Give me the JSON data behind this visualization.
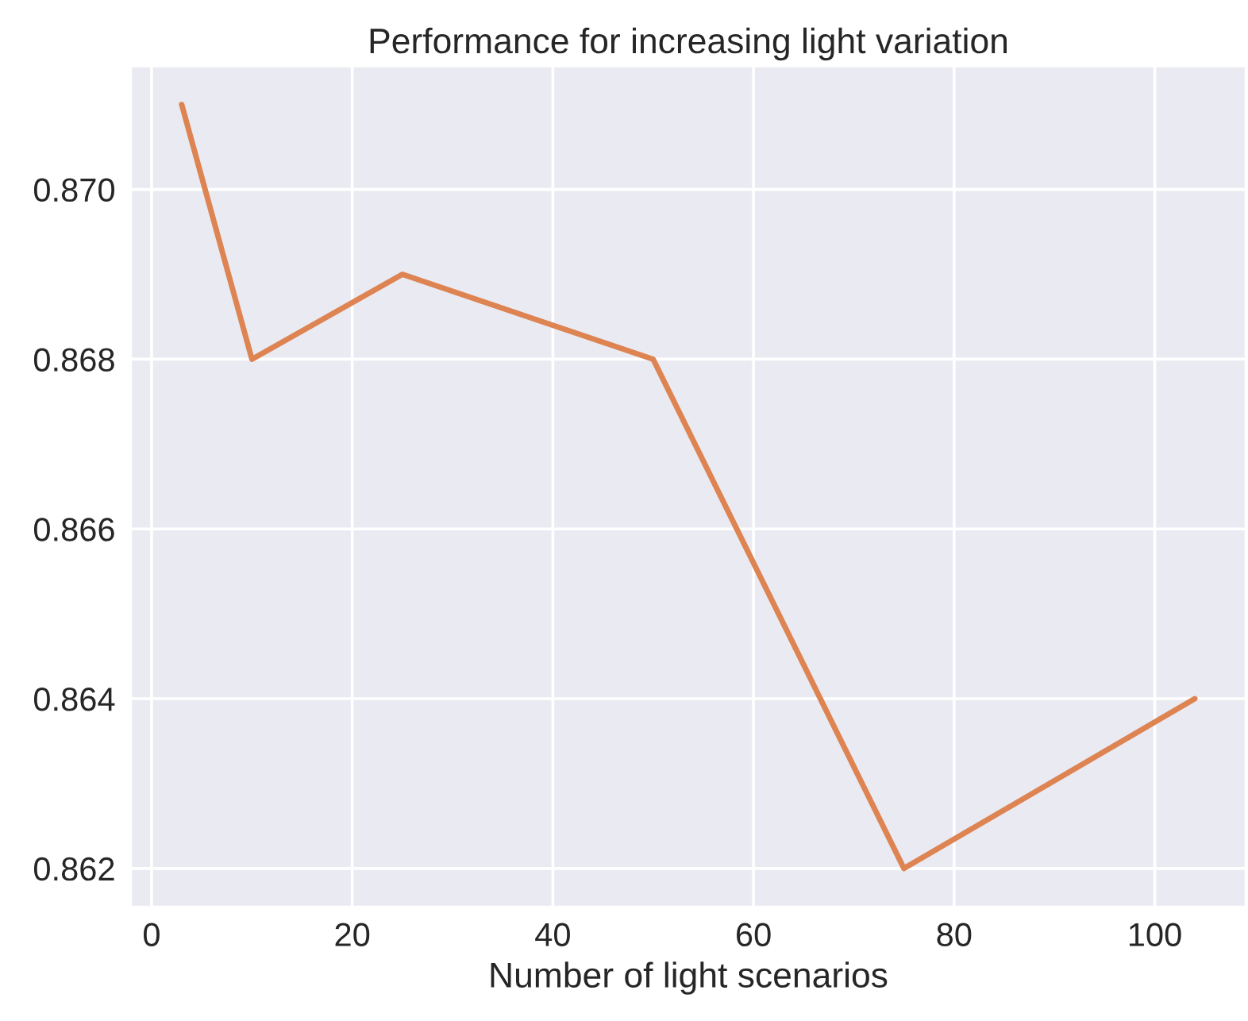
{
  "chart_data": {
    "type": "line",
    "title": "Performance for increasing light variation",
    "xlabel": "Number of light scenarios",
    "x": [
      3,
      10,
      25,
      50,
      75,
      104
    ],
    "series": [
      {
        "color": "#dd8452",
        "values": [
          0.871,
          0.868,
          0.869,
          0.868,
          0.862,
          0.864
        ]
      }
    ],
    "xlim": [
      -2.05,
      109.05
    ],
    "xticks": [
      0,
      20,
      40,
      60,
      80,
      100
    ],
    "ylim": [
      0.86155,
      0.87145
    ],
    "yticks": [
      {
        "value": 0.862,
        "label": "0.862"
      },
      {
        "value": 0.864,
        "label": "0.864"
      },
      {
        "value": 0.866,
        "label": "0.866"
      },
      {
        "value": 0.868,
        "label": "0.868"
      },
      {
        "value": 0.87,
        "label": "0.870"
      }
    ],
    "grid": true,
    "marker": "none",
    "line_style": "solid"
  }
}
